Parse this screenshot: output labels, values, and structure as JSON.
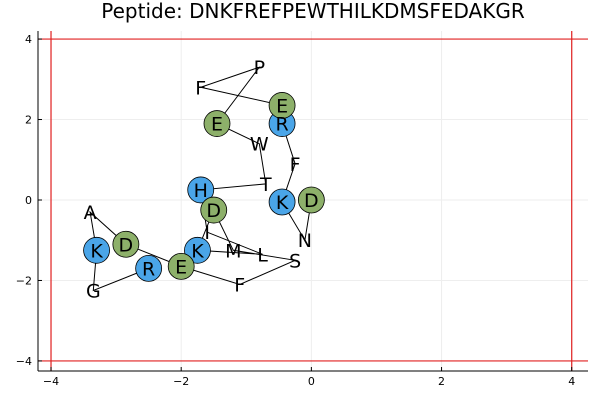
{
  "chart_data": {
    "type": "scatter",
    "title": "Peptide: DNKFREFPEWTHILKDMSFEDAKGR",
    "xlabel": "",
    "ylabel": "",
    "xlim": [
      -4.2,
      4.25
    ],
    "ylim": [
      -4.25,
      4.2
    ],
    "xticks": [
      -4,
      -2,
      0,
      2,
      4
    ],
    "yticks": [
      -4,
      -2,
      0,
      2,
      4
    ],
    "xtick_labels": [
      "−4",
      "−2",
      "0",
      "2",
      "4"
    ],
    "ytick_labels": [
      "−4",
      "−2",
      "0",
      "2",
      "4"
    ],
    "grid": true,
    "colors": {
      "basic": "#4aa5e8",
      "acidic": "#8db06a",
      "backbone": "#000000",
      "boundary": "#e02020",
      "grid": "#eeeeee"
    },
    "boundary_lines": {
      "vertical_x": [
        -4,
        4
      ],
      "horizontal_y": [
        -4,
        4
      ]
    },
    "residues": [
      {
        "label": "D",
        "x": 0.0,
        "y": 0.0,
        "kind": "acidic"
      },
      {
        "label": "N",
        "x": -0.1,
        "y": -1.0,
        "kind": "plain"
      },
      {
        "label": "K",
        "x": -0.45,
        "y": -0.05,
        "kind": "basic"
      },
      {
        "label": "F",
        "x": -0.25,
        "y": 0.9,
        "kind": "plain"
      },
      {
        "label": "R",
        "x": -0.45,
        "y": 1.9,
        "kind": "basic"
      },
      {
        "label": "E",
        "x": -0.45,
        "y": 2.35,
        "kind": "acidic"
      },
      {
        "label": "F",
        "x": -1.7,
        "y": 2.8,
        "kind": "plain"
      },
      {
        "label": "P",
        "x": -0.8,
        "y": 3.3,
        "kind": "plain"
      },
      {
        "label": "E",
        "x": -1.45,
        "y": 1.9,
        "kind": "acidic"
      },
      {
        "label": "W",
        "x": -0.8,
        "y": 1.4,
        "kind": "plain"
      },
      {
        "label": "T",
        "x": -0.7,
        "y": 0.4,
        "kind": "plain"
      },
      {
        "label": "H",
        "x": -1.7,
        "y": 0.25,
        "kind": "basic"
      },
      {
        "label": "I",
        "x": -1.6,
        "y": -0.8,
        "kind": "plain"
      },
      {
        "label": "L",
        "x": -0.75,
        "y": -1.35,
        "kind": "plain"
      },
      {
        "label": "K",
        "x": -1.75,
        "y": -1.25,
        "kind": "basic"
      },
      {
        "label": "D",
        "x": -1.5,
        "y": -0.25,
        "kind": "acidic"
      },
      {
        "label": "M",
        "x": -1.2,
        "y": -1.25,
        "kind": "plain"
      },
      {
        "label": "S",
        "x": -0.25,
        "y": -1.5,
        "kind": "plain"
      },
      {
        "label": "F",
        "x": -1.1,
        "y": -2.1,
        "kind": "plain"
      },
      {
        "label": "E",
        "x": -2.0,
        "y": -1.65,
        "kind": "acidic"
      },
      {
        "label": "D",
        "x": -2.85,
        "y": -1.1,
        "kind": "acidic"
      },
      {
        "label": "A",
        "x": -3.4,
        "y": -0.3,
        "kind": "plain"
      },
      {
        "label": "K",
        "x": -3.3,
        "y": -1.25,
        "kind": "basic"
      },
      {
        "label": "G",
        "x": -3.35,
        "y": -2.25,
        "kind": "plain"
      },
      {
        "label": "R",
        "x": -2.5,
        "y": -1.7,
        "kind": "basic"
      }
    ]
  }
}
